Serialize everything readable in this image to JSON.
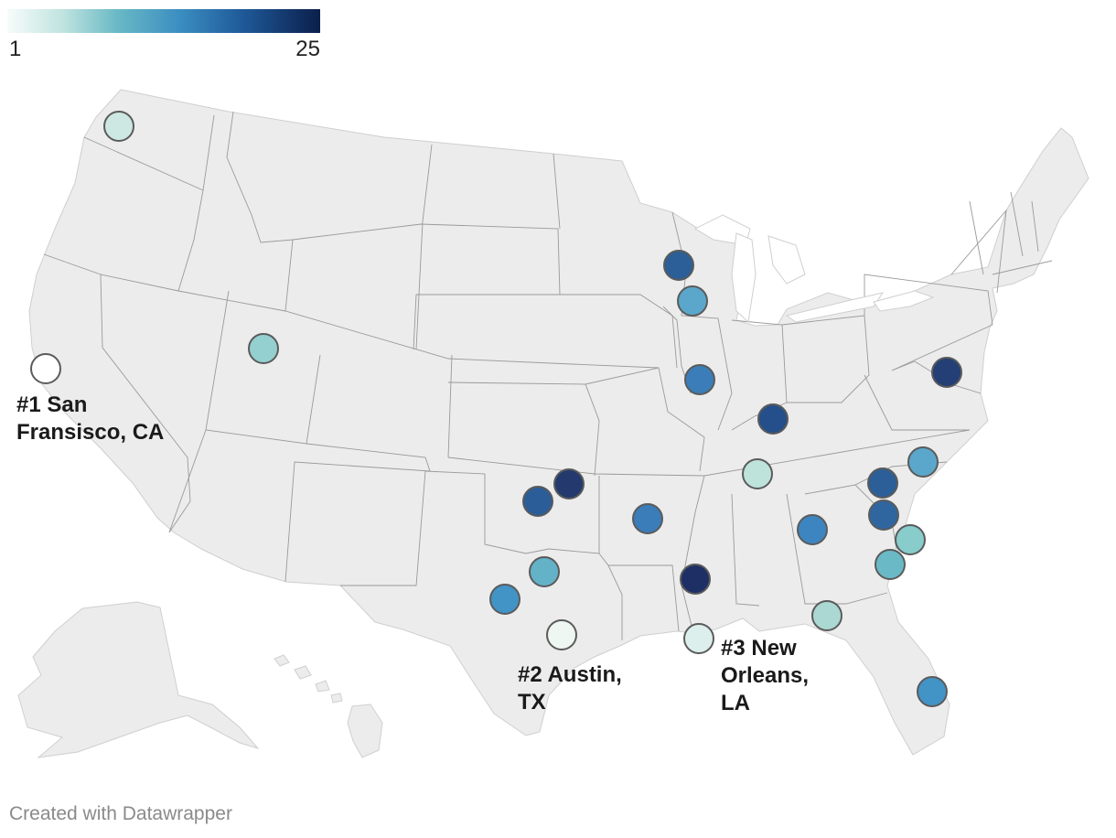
{
  "legend": {
    "min_label": "1",
    "max_label": "25",
    "colors": [
      "#f7fcfb",
      "#bfe3df",
      "#6ab9c6",
      "#3b8ec1",
      "#1f5a99",
      "#0b1f4b"
    ]
  },
  "cities": [
    {
      "id": "sf",
      "rank": 1,
      "color": "#ffffff"
    },
    {
      "id": "seattle",
      "rank": 4,
      "color": "#cde8e2"
    },
    {
      "id": "slc",
      "rank": 6,
      "color": "#93d0cf"
    },
    {
      "id": "milwaukee",
      "rank": 21,
      "color": "#2c5f97"
    },
    {
      "id": "chicago",
      "rank": 13,
      "color": "#5aa7cb"
    },
    {
      "id": "stlouis",
      "rank": 17,
      "color": "#3a7db8"
    },
    {
      "id": "louisville",
      "rank": 23,
      "color": "#254f8a"
    },
    {
      "id": "nashville",
      "rank": 5,
      "color": "#bde3da"
    },
    {
      "id": "dc",
      "rank": 24,
      "color": "#233f75"
    },
    {
      "id": "raleigh",
      "rank": 12,
      "color": "#5aa7cb"
    },
    {
      "id": "charlotte",
      "rank": 20,
      "color": "#2c5f97"
    },
    {
      "id": "columbia",
      "rank": 19,
      "color": "#2f66a0"
    },
    {
      "id": "charleston",
      "rank": 8,
      "color": "#88cccc"
    },
    {
      "id": "savannah",
      "rank": 10,
      "color": "#6ab9c6"
    },
    {
      "id": "atlanta",
      "rank": 16,
      "color": "#3d85c0"
    },
    {
      "id": "tallahassee",
      "rank": 5,
      "color": "#abd8d2"
    },
    {
      "id": "miami",
      "rank": 15,
      "color": "#4293c6"
    },
    {
      "id": "okc",
      "rank": 25,
      "color": "#243a6e"
    },
    {
      "id": "lubbock",
      "rank": 21,
      "color": "#2b5d98"
    },
    {
      "id": "fortsmith",
      "rank": 17,
      "color": "#3a7db8"
    },
    {
      "id": "dfw",
      "rank": 11,
      "color": "#63b2c8"
    },
    {
      "id": "midland",
      "rank": 15,
      "color": "#4293c6"
    },
    {
      "id": "austin",
      "rank": 2,
      "color": "#eef7f2"
    },
    {
      "id": "jackson",
      "rank": 25,
      "color": "#1e2f66"
    },
    {
      "id": "neworleans",
      "rank": 3,
      "color": "#dcefec"
    }
  ],
  "labels": {
    "sf": "#1 San Fransisco, CA",
    "austin": "#2 Austin, TX",
    "neworleans": "#3 New Orleans, LA"
  },
  "footer": "Created with Datawrapper"
}
